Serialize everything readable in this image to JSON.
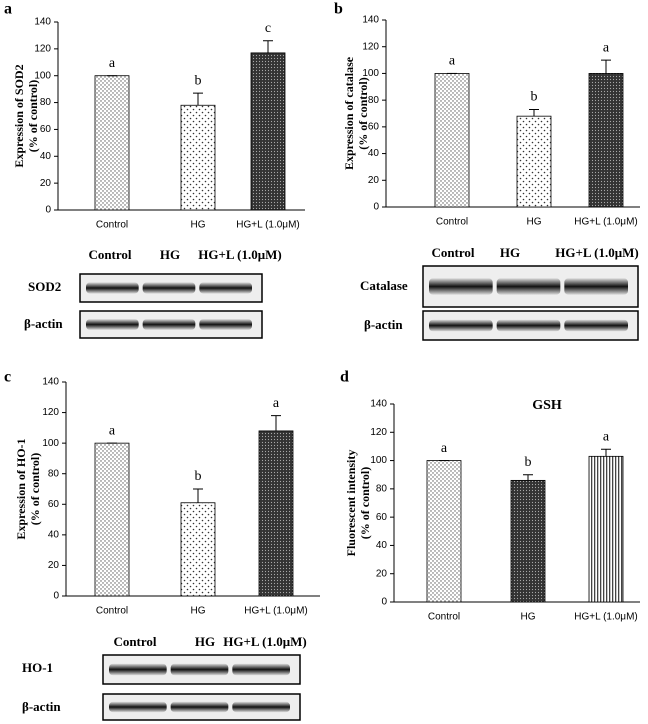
{
  "chart_data": [
    {
      "type": "bar",
      "panel": "a",
      "ylabel": [
        "Expression of SOD2",
        "(% of control)"
      ],
      "categories": [
        "Control",
        "HG",
        "HG+L (1.0μM)"
      ],
      "values": [
        100,
        78,
        117
      ],
      "errors": [
        0,
        9,
        9
      ],
      "letters": [
        "a",
        "b",
        "c"
      ],
      "ylim": [
        0,
        140
      ],
      "yticks": [
        0,
        20,
        40,
        60,
        80,
        100,
        120,
        140
      ]
    },
    {
      "type": "bar",
      "panel": "b",
      "ylabel": [
        "Expression of catalase",
        "(% of control)"
      ],
      "categories": [
        "Control",
        "HG",
        "HG+L (1.0μM)"
      ],
      "values": [
        100,
        68,
        100
      ],
      "errors": [
        0,
        5,
        10
      ],
      "letters": [
        "a",
        "b",
        "a"
      ],
      "ylim": [
        0,
        140
      ],
      "yticks": [
        0,
        20,
        40,
        60,
        80,
        100,
        120,
        140
      ]
    },
    {
      "type": "bar",
      "panel": "c",
      "ylabel": [
        "Expression of HO-1",
        "(% of control)"
      ],
      "categories": [
        "Control",
        "HG",
        "HG+L (1.0μM)"
      ],
      "values": [
        100,
        61,
        108
      ],
      "errors": [
        0,
        9,
        10
      ],
      "letters": [
        "a",
        "b",
        "a"
      ],
      "ylim": [
        0,
        140
      ],
      "yticks": [
        0,
        20,
        40,
        60,
        80,
        100,
        120,
        140
      ]
    },
    {
      "type": "bar",
      "panel": "d",
      "title": "GSH",
      "ylabel": [
        "Fluorescent intensity",
        "(% of control)"
      ],
      "categories": [
        "Control",
        "HG",
        "HG+L (1.0μM)"
      ],
      "values": [
        100,
        86,
        103
      ],
      "errors": [
        0,
        4,
        5
      ],
      "letters": [
        "a",
        "b",
        "a"
      ],
      "ylim": [
        0,
        140
      ],
      "yticks": [
        0,
        20,
        40,
        60,
        80,
        100,
        120,
        140
      ]
    }
  ],
  "blots": [
    {
      "columns": [
        "Control",
        "HG",
        "HG+L (1.0μM)"
      ],
      "rows": [
        "SOD2",
        "β-actin"
      ]
    },
    {
      "columns": [
        "Control",
        "HG",
        "HG+L (1.0μM)"
      ],
      "rows": [
        "Catalase",
        "β-actin"
      ]
    },
    {
      "columns": [
        "Control",
        "HG",
        "HG+L (1.0μM)"
      ],
      "rows": [
        "HO-1",
        "β-actin"
      ]
    }
  ]
}
